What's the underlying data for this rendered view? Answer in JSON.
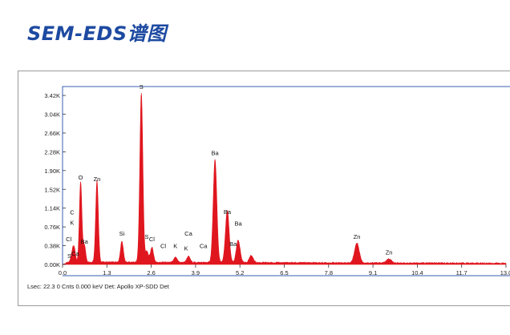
{
  "header": {
    "title": "SEM-EDS谱图"
  },
  "status": {
    "text": "Lsec: 22.3 0 Cnts  0.000 keV Det: Apollo XP-SDD Det"
  },
  "chart_data": {
    "type": "area",
    "xlabel": "",
    "ylabel": "",
    "xlim": [
      0,
      13.0
    ],
    "ylim": [
      0,
      3.6
    ],
    "x_ticks": [
      "0.0",
      "1.3",
      "2.6",
      "3.9",
      "5.2",
      "6.5",
      "7.8",
      "9.1",
      "10.4",
      "11.7",
      "13.0"
    ],
    "y_ticks": [
      "0.00K",
      "0.38K",
      "0.76K",
      "1.14K",
      "1.52K",
      "1.90K",
      "2.28K",
      "2.66K",
      "3.04K",
      "3.42K"
    ],
    "y_tick_values": [
      0,
      0.38,
      0.76,
      1.14,
      1.52,
      1.9,
      2.28,
      2.66,
      3.04,
      3.42
    ],
    "baseline": 0.05,
    "color": "#e0161f",
    "peaks": [
      {
        "x": 0.28,
        "y": 0.17
      },
      {
        "x": 0.34,
        "y": 0.28
      },
      {
        "x": 0.53,
        "y": 1.62
      },
      {
        "x": 0.64,
        "y": 0.35
      },
      {
        "x": 1.01,
        "y": 1.65
      },
      {
        "x": 1.74,
        "y": 0.42
      },
      {
        "x": 2.31,
        "y": 3.42
      },
      {
        "x": 2.47,
        "y": 0.22
      },
      {
        "x": 2.62,
        "y": 0.3
      },
      {
        "x": 3.31,
        "y": 0.1
      },
      {
        "x": 3.69,
        "y": 0.12
      },
      {
        "x": 4.47,
        "y": 2.08
      },
      {
        "x": 4.83,
        "y": 1.05
      },
      {
        "x": 5.15,
        "y": 0.45
      },
      {
        "x": 5.53,
        "y": 0.14
      },
      {
        "x": 8.63,
        "y": 0.4
      },
      {
        "x": 9.57,
        "y": 0.08
      }
    ],
    "annotations": [
      {
        "text": "S",
        "x": 2.31,
        "y": 3.55
      },
      {
        "text": "Ba",
        "x": 4.47,
        "y": 2.21
      },
      {
        "text": "O",
        "x": 0.53,
        "y": 1.72
      },
      {
        "text": "Zn",
        "x": 1.01,
        "y": 1.69
      },
      {
        "text": "C",
        "x": 0.28,
        "y": 1.01
      },
      {
        "text": "K",
        "x": 0.28,
        "y": 0.8
      },
      {
        "text": "Ba",
        "x": 4.83,
        "y": 1.02
      },
      {
        "text": "Ba",
        "x": 5.15,
        "y": 0.79
      },
      {
        "text": "Si",
        "x": 1.74,
        "y": 0.58
      },
      {
        "text": "Ca",
        "x": 3.69,
        "y": 0.58
      },
      {
        "text": "S",
        "x": 2.47,
        "y": 0.52
      },
      {
        "text": "Cl",
        "x": 2.62,
        "y": 0.47
      },
      {
        "text": "Cl",
        "x": 0.18,
        "y": 0.47
      },
      {
        "text": "Ba",
        "x": 0.64,
        "y": 0.42
      },
      {
        "text": "Ba",
        "x": 5.0,
        "y": 0.37
      },
      {
        "text": "Cl",
        "x": 2.95,
        "y": 0.33
      },
      {
        "text": "K",
        "x": 3.31,
        "y": 0.33
      },
      {
        "text": "K",
        "x": 3.62,
        "y": 0.28
      },
      {
        "text": "Ca",
        "x": 4.13,
        "y": 0.33
      },
      {
        "text": "Ca",
        "x": 0.37,
        "y": 0.18
      },
      {
        "text": "S",
        "x": 0.2,
        "y": 0.13
      },
      {
        "text": "Zn",
        "x": 8.63,
        "y": 0.52
      },
      {
        "text": "Zn",
        "x": 9.57,
        "y": 0.2
      }
    ]
  }
}
